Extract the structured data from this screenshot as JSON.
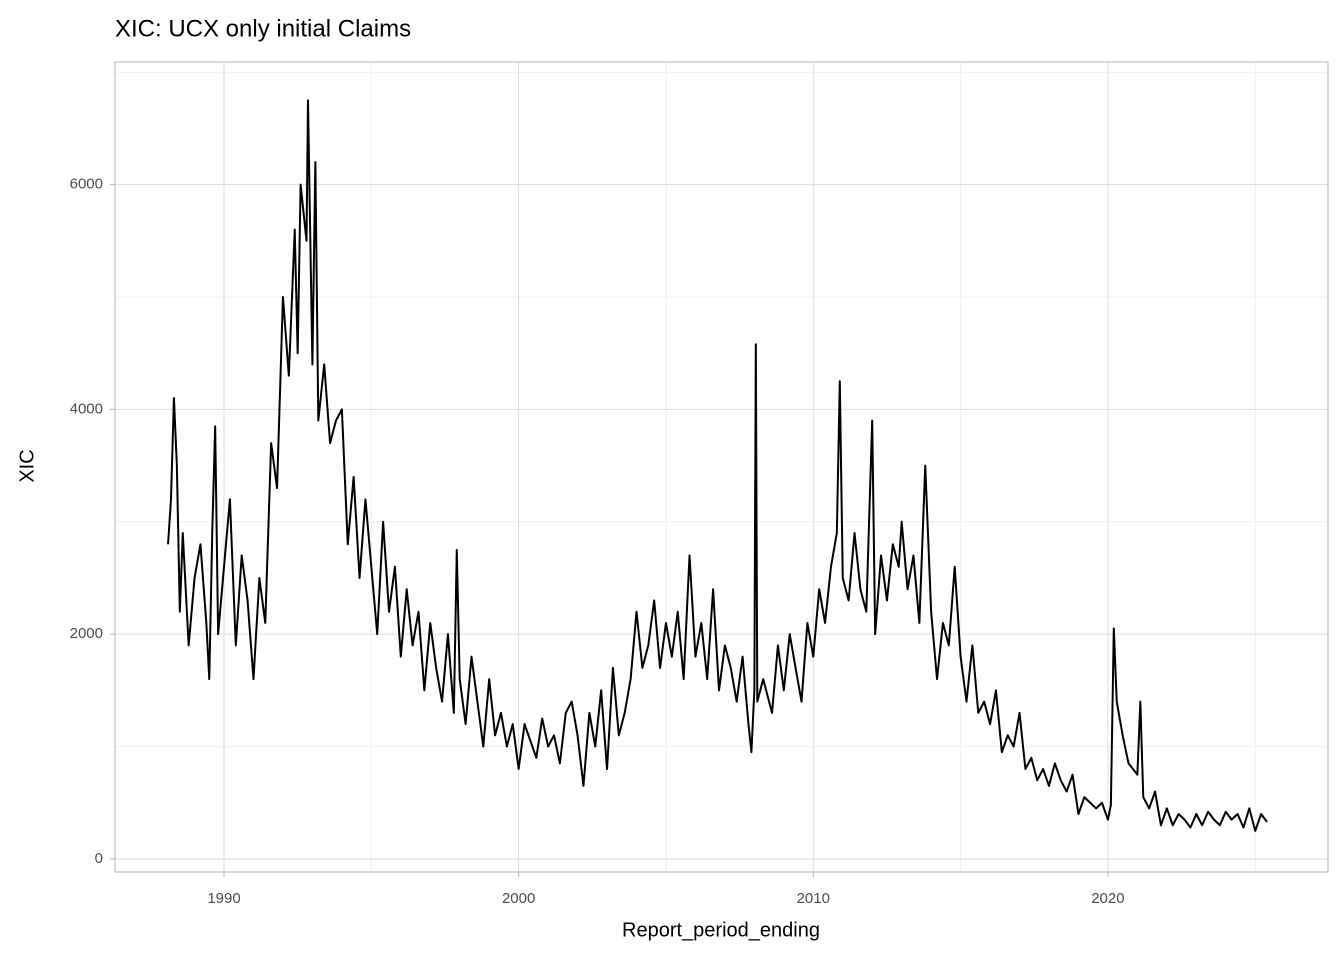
{
  "chart_data": {
    "type": "line",
    "title": "XIC: UCX only initial Claims",
    "x_label": "Report_period_ending",
    "y_label": "XIC",
    "xlim": [
      1986.3,
      2027.47
    ],
    "ylim": [
      -116,
      7091
    ],
    "xticks": [
      1990,
      2000,
      2010,
      2020
    ],
    "yticks": [
      0,
      2000,
      4000,
      6000
    ],
    "xminor": [
      1995,
      2005,
      2015,
      2025
    ],
    "yminor": [
      1000,
      3000,
      5000,
      7000
    ],
    "grid": true,
    "series": [
      {
        "name": "XIC",
        "color": "#000000",
        "x": [
          1988.1,
          1988.2,
          1988.3,
          1988.4,
          1988.5,
          1988.6,
          1988.8,
          1989.0,
          1989.2,
          1989.4,
          1989.5,
          1989.6,
          1989.7,
          1989.8,
          1990.0,
          1990.2,
          1990.4,
          1990.6,
          1990.8,
          1991.0,
          1991.2,
          1991.4,
          1991.6,
          1991.8,
          1992.0,
          1992.2,
          1992.4,
          1992.5,
          1992.6,
          1992.8,
          1992.85,
          1993.0,
          1993.1,
          1993.2,
          1993.4,
          1993.6,
          1993.8,
          1994.0,
          1994.2,
          1994.4,
          1994.6,
          1994.8,
          1995.0,
          1995.2,
          1995.4,
          1995.6,
          1995.8,
          1996.0,
          1996.2,
          1996.4,
          1996.6,
          1996.8,
          1997.0,
          1997.2,
          1997.4,
          1997.6,
          1997.8,
          1997.9,
          1998.0,
          1998.2,
          1998.4,
          1998.6,
          1998.8,
          1999.0,
          1999.2,
          1999.4,
          1999.6,
          1999.8,
          2000.0,
          2000.2,
          2000.4,
          2000.6,
          2000.8,
          2001.0,
          2001.2,
          2001.4,
          2001.6,
          2001.8,
          2002.0,
          2002.2,
          2002.4,
          2002.6,
          2002.8,
          2003.0,
          2003.2,
          2003.4,
          2003.6,
          2003.8,
          2004.0,
          2004.2,
          2004.4,
          2004.6,
          2004.8,
          2005.0,
          2005.2,
          2005.4,
          2005.6,
          2005.8,
          2006.0,
          2006.2,
          2006.4,
          2006.6,
          2006.8,
          2007.0,
          2007.2,
          2007.4,
          2007.6,
          2007.8,
          2007.9,
          2008.0,
          2008.05,
          2008.1,
          2008.3,
          2008.6,
          2008.8,
          2009.0,
          2009.2,
          2009.4,
          2009.6,
          2009.8,
          2010.0,
          2010.2,
          2010.4,
          2010.6,
          2010.8,
          2010.9,
          2011.0,
          2011.2,
          2011.4,
          2011.6,
          2011.8,
          2012.0,
          2012.1,
          2012.3,
          2012.5,
          2012.7,
          2012.9,
          2013.0,
          2013.2,
          2013.4,
          2013.6,
          2013.8,
          2014.0,
          2014.2,
          2014.4,
          2014.6,
          2014.8,
          2015.0,
          2015.2,
          2015.4,
          2015.6,
          2015.8,
          2016.0,
          2016.2,
          2016.4,
          2016.6,
          2016.8,
          2017.0,
          2017.2,
          2017.4,
          2017.6,
          2017.8,
          2018.0,
          2018.2,
          2018.4,
          2018.6,
          2018.8,
          2019.0,
          2019.2,
          2019.4,
          2019.6,
          2019.8,
          2020.0,
          2020.1,
          2020.2,
          2020.3,
          2020.5,
          2020.7,
          2021.0,
          2021.1,
          2021.2,
          2021.4,
          2021.6,
          2021.8,
          2022.0,
          2022.2,
          2022.4,
          2022.6,
          2022.8,
          2023.0,
          2023.2,
          2023.4,
          2023.6,
          2023.8,
          2024.0,
          2024.2,
          2024.4,
          2024.6,
          2024.8,
          2025.0,
          2025.2,
          2025.4
        ],
        "values": [
          2800,
          3200,
          4100,
          3500,
          2200,
          2900,
          1900,
          2500,
          2800,
          2100,
          1600,
          2900,
          3850,
          2000,
          2600,
          3200,
          1900,
          2700,
          2300,
          1600,
          2500,
          2100,
          3700,
          3300,
          5000,
          4300,
          5600,
          4500,
          6000,
          5500,
          6750,
          4400,
          6200,
          3900,
          4400,
          3700,
          3900,
          4000,
          2800,
          3400,
          2500,
          3200,
          2600,
          2000,
          3000,
          2200,
          2600,
          1800,
          2400,
          1900,
          2200,
          1500,
          2100,
          1700,
          1400,
          2000,
          1300,
          2750,
          1600,
          1200,
          1800,
          1400,
          1000,
          1600,
          1100,
          1300,
          1000,
          1200,
          800,
          1200,
          1050,
          900,
          1250,
          1000,
          1100,
          850,
          1300,
          1400,
          1100,
          650,
          1300,
          1000,
          1500,
          800,
          1700,
          1100,
          1300,
          1600,
          2200,
          1700,
          1900,
          2300,
          1700,
          2100,
          1800,
          2200,
          1600,
          2700,
          1800,
          2100,
          1600,
          2400,
          1500,
          1900,
          1700,
          1400,
          1800,
          1200,
          950,
          1500,
          4580,
          1400,
          1600,
          1300,
          1900,
          1500,
          2000,
          1700,
          1400,
          2100,
          1800,
          2400,
          2100,
          2600,
          2900,
          4250,
          2500,
          2300,
          2900,
          2400,
          2200,
          3900,
          2000,
          2700,
          2300,
          2800,
          2600,
          3000,
          2400,
          2700,
          2100,
          3500,
          2200,
          1600,
          2100,
          1900,
          2600,
          1800,
          1400,
          1900,
          1300,
          1400,
          1200,
          1500,
          950,
          1100,
          1000,
          1300,
          800,
          900,
          700,
          800,
          650,
          850,
          700,
          600,
          750,
          400,
          550,
          500,
          450,
          500,
          350,
          480,
          2050,
          1400,
          1100,
          850,
          750,
          1400,
          550,
          450,
          600,
          300,
          450,
          300,
          400,
          350,
          280,
          400,
          300,
          420,
          350,
          300,
          420,
          350,
          400,
          280,
          450,
          250,
          400,
          330
        ]
      }
    ]
  }
}
